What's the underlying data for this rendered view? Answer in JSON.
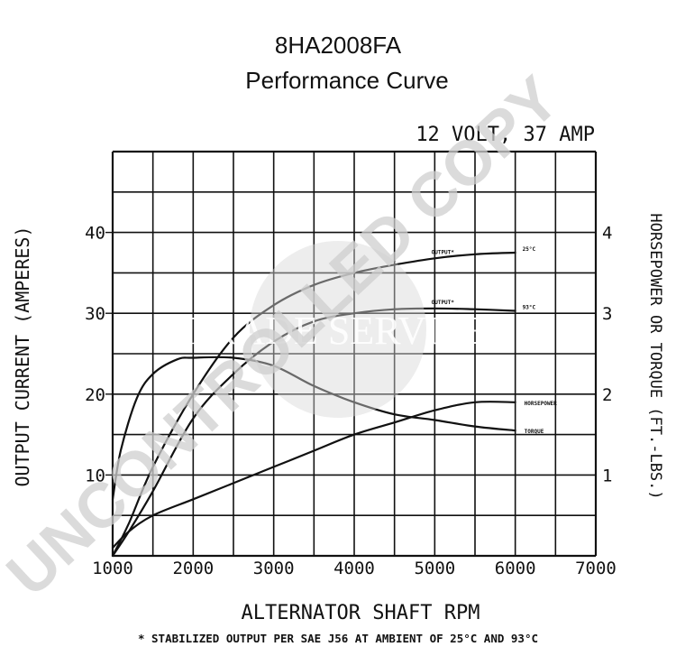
{
  "title_line1": "8HA2008FA",
  "title_line2": "Performance Curve",
  "chart_data": {
    "type": "line",
    "subtitle": "12 VOLT, 37 AMP",
    "xlabel": "ALTERNATOR SHAFT RPM",
    "ylabel_left": "OUTPUT CURRENT (AMPERES)",
    "ylabel_right": "HORSEPOWER OR TORQUE (FT.-LBS.)",
    "xlim": [
      1000,
      7000
    ],
    "ylim_left": [
      0,
      50
    ],
    "ylim_right": [
      0,
      5
    ],
    "grid": true,
    "x_ticks": [
      "1000",
      "2000",
      "3000",
      "4000",
      "5000",
      "6000",
      "7000"
    ],
    "y_left_ticks": [
      {
        "value": 10,
        "label": "10"
      },
      {
        "value": 20,
        "label": "20"
      },
      {
        "value": 30,
        "label": "30"
      },
      {
        "value": 40,
        "label": "40"
      }
    ],
    "y_right_ticks": [
      {
        "value": 1,
        "label": "1"
      },
      {
        "value": 2,
        "label": "2"
      },
      {
        "value": 3,
        "label": "3"
      },
      {
        "value": 4,
        "label": "4"
      }
    ],
    "series": [
      {
        "name": "OUTPUT* 25°C",
        "axis": "left",
        "label": "OUTPUT*",
        "end_label": "25°C",
        "x": [
          1000,
          1200,
          1500,
          2000,
          2500,
          3000,
          3500,
          4000,
          4500,
          5000,
          5500,
          6000
        ],
        "y": [
          0,
          4,
          11,
          20,
          27,
          31,
          33.5,
          35,
          36,
          36.8,
          37.3,
          37.5
        ]
      },
      {
        "name": "OUTPUT* 93°C",
        "axis": "left",
        "label": "OUTPUT*",
        "end_label": "93°C",
        "x": [
          1000,
          1200,
          1500,
          2000,
          2500,
          3000,
          3500,
          4000,
          4500,
          5000,
          5500,
          6000
        ],
        "y": [
          0,
          3,
          8,
          17,
          22.5,
          26.5,
          29,
          30,
          30.5,
          30.6,
          30.5,
          30.3
        ]
      },
      {
        "name": "TORQUE",
        "axis": "right",
        "label": "TORQUE",
        "x": [
          1000,
          1100,
          1300,
          1500,
          1800,
          2000,
          2500,
          3000,
          3500,
          4000,
          4500,
          5000,
          5500,
          6000
        ],
        "y": [
          0.7,
          1.3,
          1.95,
          2.25,
          2.43,
          2.45,
          2.45,
          2.35,
          2.1,
          1.9,
          1.75,
          1.68,
          1.6,
          1.55
        ]
      },
      {
        "name": "HORSEPOWER",
        "axis": "right",
        "label": "HORSEPOWER",
        "x": [
          1000,
          1200,
          1500,
          2000,
          2500,
          3000,
          3500,
          4000,
          4500,
          5000,
          5500,
          6000
        ],
        "y": [
          0.1,
          0.3,
          0.5,
          0.7,
          0.9,
          1.1,
          1.3,
          1.5,
          1.65,
          1.8,
          1.9,
          1.9
        ]
      }
    ],
    "footnote": "* STABILIZED OUTPUT PER SAE J56 AT AMBIENT OF 25°C AND 93°C"
  },
  "watermark": {
    "main": "UNCONTROLLED COPY",
    "sub": "TRADE SERVICE"
  }
}
